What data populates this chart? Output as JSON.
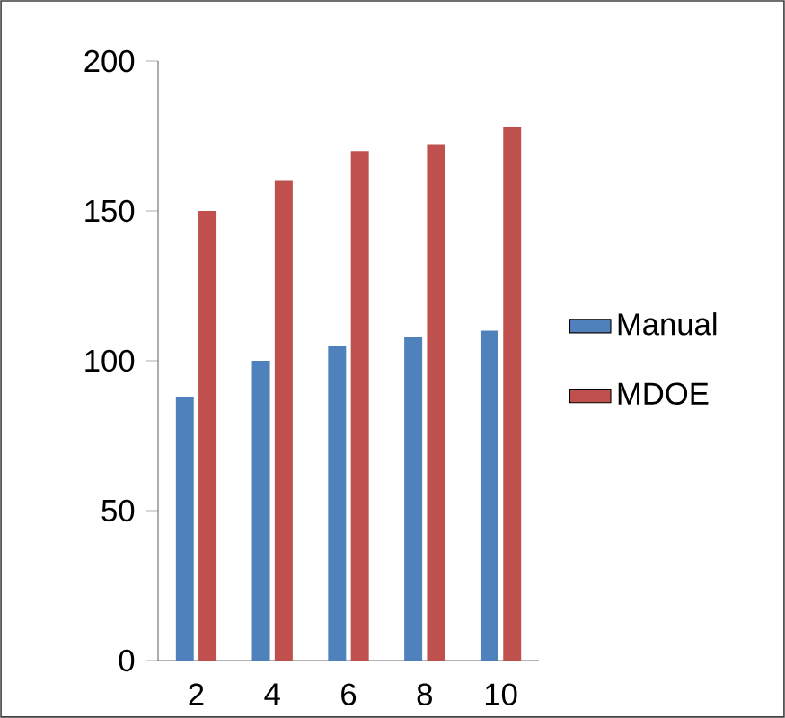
{
  "chart_data": {
    "type": "bar",
    "categories": [
      "2",
      "4",
      "6",
      "8",
      "10"
    ],
    "series": [
      {
        "name": "Manual",
        "color": "#4f81bd",
        "values": [
          88,
          100,
          105,
          108,
          110
        ]
      },
      {
        "name": "MDOE",
        "color": "#c0504d",
        "values": [
          150,
          160,
          170,
          172,
          178
        ]
      }
    ],
    "ylim": [
      0,
      200
    ],
    "yticks": [
      0,
      50,
      100,
      150,
      200
    ],
    "legend": "right",
    "grid": false
  }
}
